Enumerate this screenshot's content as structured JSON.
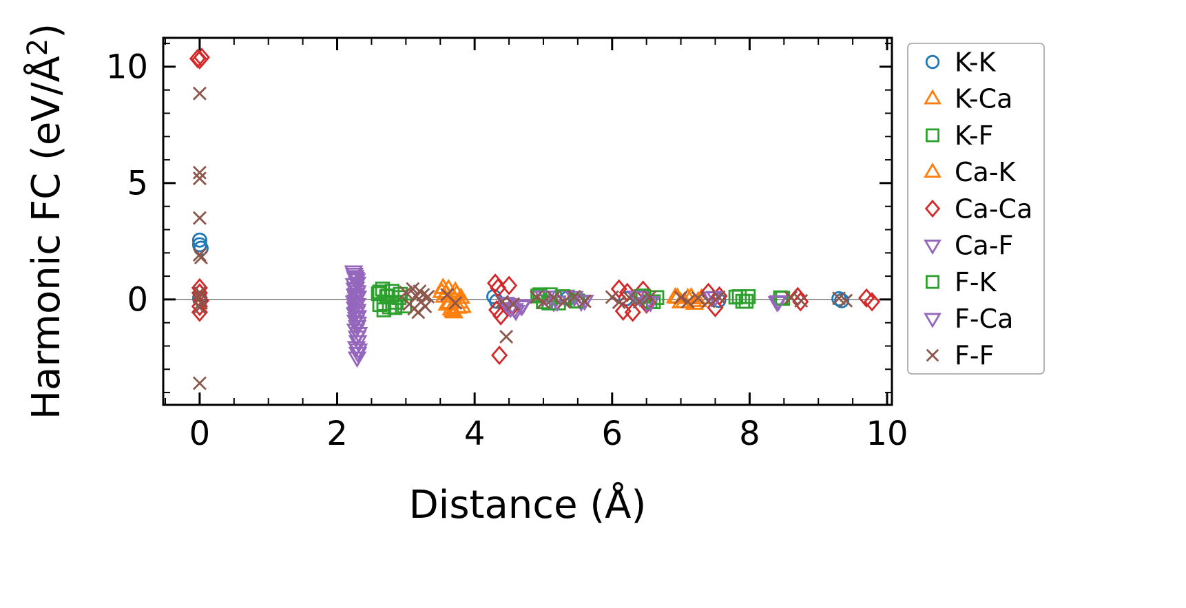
{
  "figure": {
    "background": "#ffffff"
  },
  "chart_data": {
    "type": "scatter",
    "title": "",
    "xlabel": "Distance (Å)",
    "ylabel": "Harmonic FC (eV/Å²)",
    "xlim": [
      -0.53,
      10.07
    ],
    "ylim": [
      -4.53,
      11.24
    ],
    "xticks": [
      0,
      2,
      4,
      6,
      8,
      10
    ],
    "yticks": [
      0,
      5,
      10
    ],
    "x_minor_step": 0.5,
    "y_minor_step": 1,
    "grid": false,
    "zero_line": {
      "y": 0,
      "color": "#808080"
    },
    "legend": {
      "position": "outside-right",
      "border_color": "#aaaaaa",
      "background": "#ffffff"
    },
    "axis_color": "#000000",
    "series": [
      {
        "name": "K-K",
        "marker": "circle",
        "color": "#1f77b4",
        "points": [
          [
            0,
            2.55
          ],
          [
            0,
            2.35
          ],
          [
            0.02,
            2.2
          ],
          [
            0,
            0.05
          ],
          [
            4.28,
            0.12
          ],
          [
            4.32,
            -0.08
          ],
          [
            5.35,
            0.05
          ],
          [
            6.2,
            0.03
          ],
          [
            7.55,
            -0.04
          ],
          [
            9.3,
            0.03
          ],
          [
            9.34,
            -0.05
          ]
        ]
      },
      {
        "name": "K-Ca",
        "marker": "triangle-up",
        "color": "#ff7f0e",
        "points": [
          [
            3.52,
            0.32
          ],
          [
            3.56,
            0.12
          ],
          [
            3.6,
            -0.22
          ],
          [
            3.62,
            0.45
          ],
          [
            3.66,
            -0.42
          ],
          [
            3.7,
            -0.55
          ],
          [
            3.74,
            0.22
          ],
          [
            3.78,
            -0.12
          ],
          [
            3.82,
            -0.32
          ],
          [
            6.92,
            0.1
          ],
          [
            7.0,
            -0.12
          ],
          [
            7.1,
            0.07
          ],
          [
            7.2,
            -0.18
          ],
          [
            7.3,
            0.05
          ]
        ]
      },
      {
        "name": "K-F",
        "marker": "square",
        "color": "#2ca02c",
        "points": [
          [
            2.6,
            0.25
          ],
          [
            2.62,
            -0.22
          ],
          [
            2.66,
            0.45
          ],
          [
            2.68,
            -0.45
          ],
          [
            2.72,
            0.12
          ],
          [
            2.76,
            -0.32
          ],
          [
            2.8,
            0.35
          ],
          [
            2.86,
            -0.12
          ],
          [
            2.92,
            0.22
          ],
          [
            2.98,
            -0.28
          ],
          [
            4.92,
            0.15
          ],
          [
            5.0,
            -0.1
          ],
          [
            5.1,
            0.2
          ],
          [
            5.22,
            -0.15
          ],
          [
            5.35,
            0.1
          ],
          [
            5.5,
            -0.07
          ],
          [
            6.42,
            0.12
          ],
          [
            6.55,
            -0.1
          ],
          [
            6.65,
            0.08
          ],
          [
            7.8,
            0.1
          ],
          [
            7.9,
            -0.08
          ],
          [
            7.98,
            0.12
          ],
          [
            8.45,
            0.07
          ]
        ]
      },
      {
        "name": "Ca-K",
        "marker": "triangle-up",
        "color": "#ff7f0e",
        "points": [
          [
            3.54,
            0.5
          ],
          [
            3.58,
            0.25
          ],
          [
            3.64,
            -0.15
          ],
          [
            3.68,
            -0.5
          ],
          [
            3.72,
            0.35
          ],
          [
            3.76,
            -0.35
          ],
          [
            3.8,
            0.08
          ],
          [
            6.95,
            0.08
          ],
          [
            7.05,
            -0.1
          ],
          [
            7.15,
            0.1
          ],
          [
            7.25,
            -0.07
          ]
        ]
      },
      {
        "name": "Ca-Ca",
        "marker": "diamond",
        "color": "#d62728",
        "points": [
          [
            0,
            10.3
          ],
          [
            0.03,
            10.4
          ],
          [
            -0.03,
            10.35
          ],
          [
            0,
            0.5
          ],
          [
            0,
            0.28
          ],
          [
            0.02,
            -0.05
          ],
          [
            0,
            -0.3
          ],
          [
            0,
            -0.55
          ],
          [
            4.3,
            0.7
          ],
          [
            4.34,
            0.5
          ],
          [
            4.32,
            -0.45
          ],
          [
            4.38,
            -0.7
          ],
          [
            4.36,
            -2.4
          ],
          [
            4.5,
            0.6
          ],
          [
            4.55,
            -0.3
          ],
          [
            6.1,
            0.45
          ],
          [
            6.16,
            -0.5
          ],
          [
            6.22,
            0.3
          ],
          [
            6.3,
            -0.55
          ],
          [
            6.45,
            0.4
          ],
          [
            6.5,
            -0.2
          ],
          [
            7.4,
            0.3
          ],
          [
            7.5,
            -0.35
          ],
          [
            7.56,
            0.15
          ],
          [
            8.7,
            0.12
          ],
          [
            8.74,
            -0.1
          ],
          [
            9.7,
            0.06
          ],
          [
            9.78,
            -0.1
          ]
        ]
      },
      {
        "name": "Ca-F",
        "marker": "triangle-down",
        "color": "#9467bd",
        "points": [
          [
            2.24,
            1.2
          ],
          [
            2.26,
            1.0
          ],
          [
            2.28,
            0.85
          ],
          [
            2.25,
            0.65
          ],
          [
            2.27,
            0.5
          ],
          [
            2.29,
            0.35
          ],
          [
            2.26,
            0.2
          ],
          [
            2.28,
            0.05
          ],
          [
            2.25,
            -0.1
          ],
          [
            2.27,
            -0.25
          ],
          [
            2.29,
            -0.45
          ],
          [
            2.26,
            -0.6
          ],
          [
            2.28,
            -0.8
          ],
          [
            2.3,
            -1.0
          ],
          [
            2.27,
            -1.3
          ],
          [
            2.29,
            -1.6
          ],
          [
            2.28,
            -2.05
          ],
          [
            2.3,
            -2.3
          ],
          [
            2.29,
            -2.5
          ],
          [
            4.45,
            -0.15
          ],
          [
            4.52,
            -0.38
          ],
          [
            4.6,
            -0.5
          ],
          [
            4.7,
            -0.25
          ],
          [
            5.05,
            0.12
          ],
          [
            5.15,
            -0.12
          ],
          [
            5.3,
            0.15
          ],
          [
            5.55,
            -0.1
          ],
          [
            6.35,
            0.12
          ],
          [
            6.5,
            -0.15
          ],
          [
            7.5,
            0.1
          ],
          [
            8.4,
            -0.12
          ]
        ]
      },
      {
        "name": "F-K",
        "marker": "square",
        "color": "#2ca02c",
        "points": [
          [
            2.62,
            0.32
          ],
          [
            2.68,
            -0.18
          ],
          [
            2.74,
            0.15
          ],
          [
            2.84,
            -0.35
          ],
          [
            2.9,
            0.08
          ],
          [
            4.95,
            0.2
          ],
          [
            5.08,
            -0.15
          ],
          [
            5.28,
            0.12
          ],
          [
            5.48,
            -0.06
          ],
          [
            6.45,
            0.15
          ],
          [
            6.6,
            -0.1
          ],
          [
            7.85,
            0.12
          ],
          [
            7.95,
            -0.08
          ],
          [
            8.48,
            0.05
          ]
        ]
      },
      {
        "name": "F-Ca",
        "marker": "triangle-down",
        "color": "#9467bd",
        "points": [
          [
            2.25,
            1.1
          ],
          [
            2.27,
            0.92
          ],
          [
            2.29,
            0.72
          ],
          [
            2.26,
            0.45
          ],
          [
            2.28,
            0.25
          ],
          [
            2.3,
            0.12
          ],
          [
            2.27,
            -0.05
          ],
          [
            2.29,
            -0.2
          ],
          [
            2.26,
            -0.35
          ],
          [
            2.28,
            -0.55
          ],
          [
            2.3,
            -0.72
          ],
          [
            2.27,
            -0.92
          ],
          [
            2.29,
            -1.15
          ],
          [
            2.31,
            -1.45
          ],
          [
            2.3,
            -1.8
          ],
          [
            2.31,
            -2.15
          ],
          [
            4.48,
            -0.2
          ],
          [
            4.58,
            -0.42
          ],
          [
            4.68,
            -0.3
          ],
          [
            5.0,
            0.12
          ],
          [
            5.2,
            -0.1
          ],
          [
            5.45,
            0.1
          ],
          [
            5.6,
            -0.06
          ],
          [
            6.4,
            0.1
          ],
          [
            6.56,
            -0.12
          ],
          [
            7.45,
            0.08
          ],
          [
            8.42,
            -0.08
          ]
        ]
      },
      {
        "name": "F-F",
        "marker": "x",
        "color": "#8c564b",
        "points": [
          [
            0,
            8.85
          ],
          [
            0,
            5.45
          ],
          [
            0,
            5.2
          ],
          [
            0,
            3.5
          ],
          [
            0,
            1.92
          ],
          [
            0.02,
            1.8
          ],
          [
            0,
            0.3
          ],
          [
            0,
            0.1
          ],
          [
            0.02,
            -0.15
          ],
          [
            0,
            -0.35
          ],
          [
            0,
            -3.6
          ],
          [
            3.0,
            0.3
          ],
          [
            3.05,
            -0.2
          ],
          [
            3.1,
            0.45
          ],
          [
            3.12,
            -0.4
          ],
          [
            3.15,
            0.15
          ],
          [
            3.18,
            -0.55
          ],
          [
            3.2,
            0.35
          ],
          [
            3.22,
            -0.1
          ],
          [
            3.25,
            0.2
          ],
          [
            3.28,
            -0.3
          ],
          [
            3.32,
            0.12
          ],
          [
            3.6,
            0.2
          ],
          [
            3.72,
            -0.15
          ],
          [
            4.4,
            -0.1
          ],
          [
            4.46,
            -1.6
          ],
          [
            4.56,
            -0.2
          ],
          [
            4.9,
            0.1
          ],
          [
            5.0,
            -0.12
          ],
          [
            5.15,
            0.08
          ],
          [
            5.3,
            -0.1
          ],
          [
            5.45,
            0.12
          ],
          [
            5.6,
            -0.08
          ],
          [
            6.0,
            0.1
          ],
          [
            6.1,
            -0.12
          ],
          [
            6.25,
            0.08
          ],
          [
            6.4,
            -0.1
          ],
          [
            6.55,
            0.1
          ],
          [
            7.0,
            0.08
          ],
          [
            7.1,
            -0.1
          ],
          [
            7.25,
            0.06
          ],
          [
            7.4,
            -0.08
          ],
          [
            7.55,
            0.1
          ],
          [
            8.6,
            0.08
          ],
          [
            8.75,
            -0.06
          ],
          [
            9.3,
            0.05
          ],
          [
            9.4,
            -0.05
          ]
        ]
      }
    ]
  }
}
